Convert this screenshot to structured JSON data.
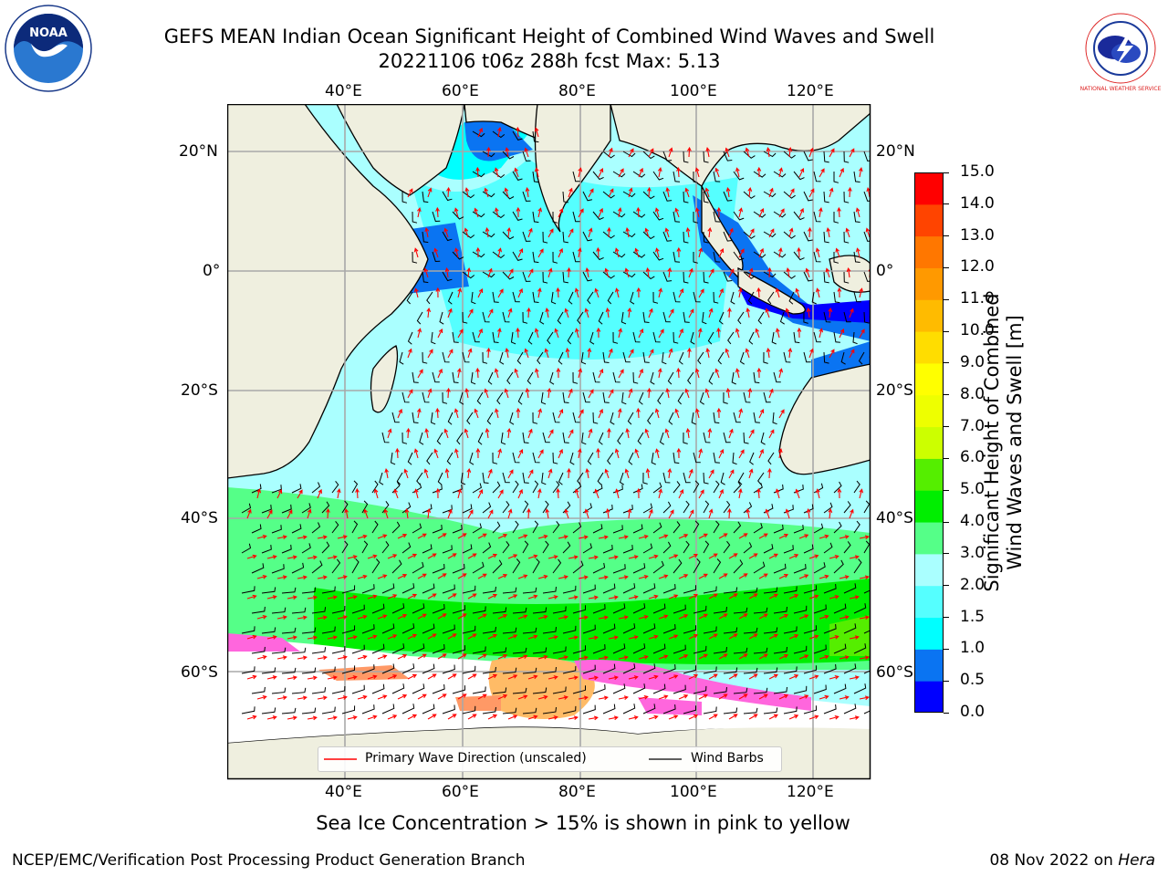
{
  "header": {
    "title_line1": "GEFS MEAN Indian Ocean Significant Height of Combined Wind Waves and Swell",
    "title_line2": "20221106 t06z 288h fcst   Max: 5.13",
    "noaa_logo_text": "NOAA",
    "nws_logo_text": "NATIONAL WEATHER SERVICE"
  },
  "map": {
    "lon_labels_top": [
      "40°E",
      "60°E",
      "80°E",
      "100°E",
      "120°E"
    ],
    "lon_labels_bottom": [
      "40°E",
      "60°E",
      "80°E",
      "100°E",
      "120°E"
    ],
    "lat_labels_left": [
      "20°N",
      "0°",
      "20°S",
      "40°S",
      "60°S"
    ],
    "lat_labels_right": [
      "20°N",
      "0°",
      "20°S",
      "40°S",
      "60°S"
    ],
    "lon_range": [
      20,
      130
    ],
    "lat_range": [
      -70,
      27
    ],
    "grid": true
  },
  "legend": {
    "wave_direction_label": "Primary Wave Direction (unscaled)",
    "wind_barbs_label": "Wind Barbs",
    "wave_direction_color": "#ff0000",
    "wind_barbs_color": "#000000"
  },
  "colorbar": {
    "title_line1": "Significant Height of Combined",
    "title_line2": "Wind Waves and Swell [m]",
    "ticks": [
      "0.0",
      "0.5",
      "1.0",
      "1.5",
      "2.0",
      "3.0",
      "4.0",
      "5.0",
      "6.0",
      "7.0",
      "8.0",
      "9.0",
      "10.0",
      "11.0",
      "12.0",
      "13.0",
      "14.0",
      "15.0"
    ],
    "colors": [
      "#0000ff",
      "#0a74f2",
      "#00ffff",
      "#55ffff",
      "#aaffff",
      "#55ff88",
      "#00ee00",
      "#55ee00",
      "#ccff00",
      "#eeff00",
      "#ffff00",
      "#ffdd00",
      "#ffbb00",
      "#ff9900",
      "#ff7700",
      "#ff4400",
      "#ff0000"
    ]
  },
  "sea_ice_note": "Sea Ice Concentration > 15% is shown in pink to yellow",
  "footer": {
    "left": "NCEP/EMC/Verification Post Processing Product Generation Branch",
    "right_prefix": "08 Nov 2022 on ",
    "right_host": "Hera"
  }
}
